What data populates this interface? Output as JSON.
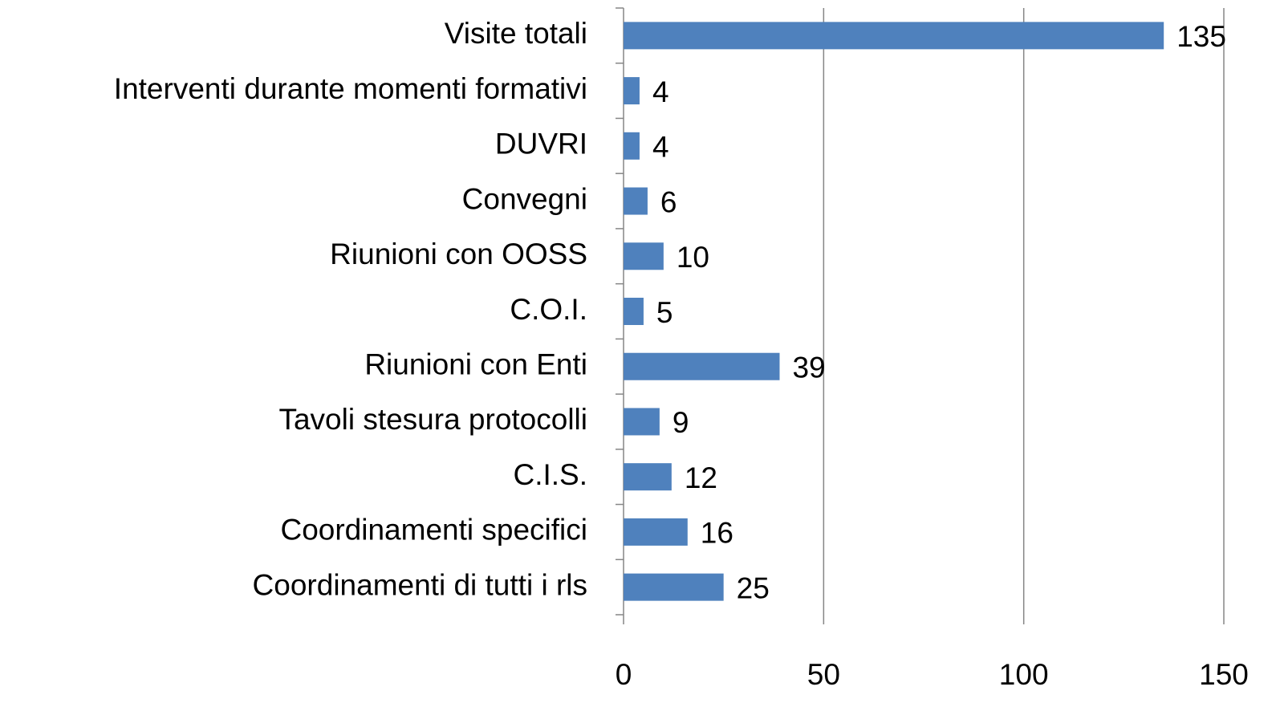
{
  "chart_data": {
    "type": "bar",
    "orientation": "horizontal",
    "categories": [
      "Visite totali",
      "Interventi durante momenti formativi",
      "DUVRI",
      "Convegni",
      "Riunioni con OOSS",
      "C.O.I.",
      "Riunioni con Enti",
      "Tavoli stesura protocolli",
      "C.I.S.",
      "Coordinamenti specifici",
      "Coordinamenti di tutti i rls"
    ],
    "values": [
      135,
      4,
      4,
      6,
      10,
      5,
      39,
      9,
      12,
      16,
      25
    ],
    "color": "#4f81bd",
    "xlim": [
      0,
      150
    ],
    "xticks": [
      0,
      50,
      100,
      150
    ],
    "grid": true,
    "data_labels": true
  }
}
